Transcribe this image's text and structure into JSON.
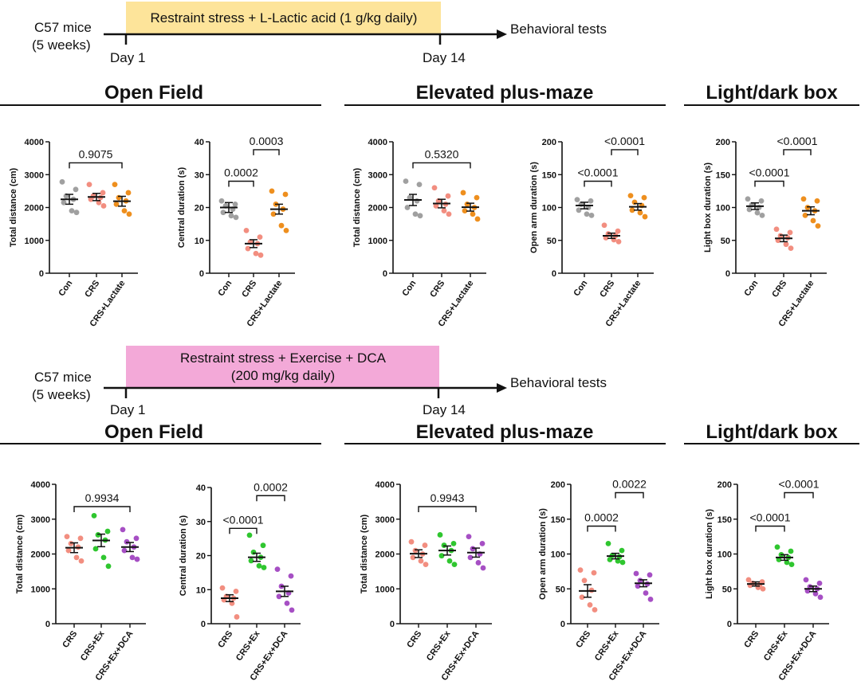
{
  "colors": {
    "Con": "#a0a0a0",
    "CRS": "#f28e80",
    "CRS+Lactate": "#ee8f1e",
    "CRS+Ex": "#2fc62f",
    "CRS+Ex+DCA": "#a64fc4",
    "box_top": "#fde49a",
    "box_bottom": "#f3a9d8"
  },
  "timelines": [
    {
      "subject_line1": "C57 mice",
      "subject_line2": "(5 weeks)",
      "box_line1": "Restraint stress + L-Lactic acid (1 g/kg daily)",
      "box_line2": "",
      "start": "Day 1",
      "end": "Day 14",
      "outcome": "Behavioral tests"
    },
    {
      "subject_line1": "C57 mice",
      "subject_line2": "(5 weeks)",
      "box_line1": "Restraint stress + Exercise + DCA",
      "box_line2": "(200 mg/kg daily)",
      "start": "Day 1",
      "end": "Day 14",
      "outcome": "Behavioral tests"
    }
  ],
  "sections": [
    {
      "title": "Open Field"
    },
    {
      "title": "Elevated plus-maze"
    },
    {
      "title": "Light/dark box"
    },
    {
      "title": "Open Field"
    },
    {
      "title": "Elevated plus-maze"
    },
    {
      "title": "Light/dark box"
    }
  ],
  "chart_data": [
    {
      "type": "scatter",
      "ylabel": "Total distance (cm)",
      "ylim": [
        0,
        4000
      ],
      "yticks": [
        0,
        1000,
        2000,
        3000,
        4000
      ],
      "categories": [
        "Con",
        "CRS",
        "CRS+Lactate"
      ],
      "means": [
        2250,
        2320,
        2190
      ],
      "sems": [
        150,
        110,
        150
      ],
      "points": [
        [
          2780,
          2550,
          2350,
          2250,
          2150,
          1900,
          1850
        ],
        [
          2700,
          2450,
          2350,
          2300,
          2250,
          2150,
          2050
        ],
        [
          2700,
          2450,
          2300,
          2200,
          2100,
          1900,
          1800
        ]
      ],
      "comparisons": [
        {
          "from": 0,
          "to": 2,
          "label": "0.9075"
        }
      ]
    },
    {
      "type": "scatter",
      "ylabel": "Central duration (s)",
      "ylim": [
        0,
        40
      ],
      "yticks": [
        0,
        10,
        20,
        30,
        40
      ],
      "categories": [
        "Con",
        "CRS",
        "CRS+Lactate"
      ],
      "means": [
        20,
        9,
        19.5
      ],
      "sems": [
        1.5,
        1.2,
        1.5
      ],
      "points": [
        [
          22,
          21,
          20.5,
          19.5,
          18.5,
          17.5,
          17
        ],
        [
          13,
          11,
          9.5,
          9,
          7.5,
          6,
          5.5
        ],
        [
          25,
          24,
          21,
          19.5,
          18,
          14.5,
          13
        ]
      ],
      "comparisons": [
        {
          "from": 0,
          "to": 1,
          "label": "0.0002"
        },
        {
          "from": 1,
          "to": 2,
          "label": "0.0003"
        }
      ]
    },
    {
      "type": "scatter",
      "ylabel": "Total distance (cm)",
      "ylim": [
        0,
        4000
      ],
      "yticks": [
        0,
        1000,
        2000,
        3000,
        4000
      ],
      "categories": [
        "Con",
        "CRS",
        "CRS+Lactate"
      ],
      "means": [
        2230,
        2120,
        2010
      ],
      "sems": [
        170,
        130,
        120
      ],
      "points": [
        [
          2800,
          2700,
          2300,
          2200,
          2000,
          1800,
          1750
        ],
        [
          2600,
          2350,
          2200,
          2100,
          2050,
          1900,
          1800
        ],
        [
          2450,
          2300,
          2100,
          2000,
          1900,
          1800,
          1650
        ]
      ],
      "comparisons": [
        {
          "from": 0,
          "to": 2,
          "label": "0.5320"
        }
      ]
    },
    {
      "type": "scatter",
      "ylabel": "Open arm duration (s)",
      "ylim": [
        0,
        200
      ],
      "yticks": [
        0,
        50,
        100,
        150,
        200
      ],
      "categories": [
        "Con",
        "CRS",
        "CRS+Lactate"
      ],
      "means": [
        103,
        57,
        101
      ],
      "sems": [
        5,
        4,
        5
      ],
      "points": [
        [
          112,
          110,
          105,
          100,
          96,
          90,
          88
        ],
        [
          73,
          64,
          60,
          57,
          54,
          51,
          48
        ],
        [
          118,
          115,
          108,
          103,
          96,
          92,
          86
        ]
      ],
      "comparisons": [
        {
          "from": 0,
          "to": 1,
          "label": "<0.0001"
        },
        {
          "from": 1,
          "to": 2,
          "label": "<0.0001"
        }
      ]
    },
    {
      "type": "scatter",
      "ylabel": "Light box duration (s)",
      "ylim": [
        0,
        200
      ],
      "yticks": [
        0,
        50,
        100,
        150,
        200
      ],
      "categories": [
        "Con",
        "CRS",
        "CRS+Lactate"
      ],
      "means": [
        102,
        53,
        95
      ],
      "sems": [
        5,
        5,
        6
      ],
      "points": [
        [
          113,
          110,
          104,
          100,
          97,
          92,
          88
        ],
        [
          67,
          62,
          57,
          54,
          50,
          44,
          38
        ],
        [
          113,
          110,
          100,
          95,
          88,
          80,
          72
        ]
      ],
      "comparisons": [
        {
          "from": 0,
          "to": 1,
          "label": "<0.0001"
        },
        {
          "from": 1,
          "to": 2,
          "label": "<0.0001"
        }
      ]
    },
    {
      "type": "scatter",
      "ylabel": "Total distance (cm)",
      "ylim": [
        0,
        4000
      ],
      "yticks": [
        0,
        1000,
        2000,
        3000,
        4000
      ],
      "categories": [
        "CRS",
        "CRS+Ex",
        "CRS+Ex+DCA"
      ],
      "means": [
        2180,
        2390,
        2200
      ],
      "sems": [
        140,
        180,
        130
      ],
      "points": [
        [
          2500,
          2450,
          2300,
          2200,
          2100,
          1900,
          1800
        ],
        [
          3100,
          2650,
          2550,
          2400,
          2150,
          1900,
          1650
        ],
        [
          2700,
          2450,
          2350,
          2200,
          2100,
          1900,
          1850
        ]
      ],
      "comparisons": [
        {
          "from": 0,
          "to": 2,
          "label": "0.9934"
        }
      ]
    },
    {
      "type": "scatter",
      "ylabel": "Central duration (s)",
      "ylim": [
        0,
        40
      ],
      "yticks": [
        0,
        10,
        20,
        30,
        40
      ],
      "categories": [
        "CRS",
        "CRS+Ex",
        "CRS+Ex+DCA"
      ],
      "means": [
        7.5,
        19.5,
        9.5
      ],
      "sems": [
        1,
        1.2,
        1.5
      ],
      "points": [
        [
          10.5,
          9.5,
          8,
          7.5,
          7,
          6,
          2
        ],
        [
          26,
          23,
          21,
          19.5,
          18.5,
          17,
          16.5
        ],
        [
          16,
          14,
          11,
          9,
          8,
          6,
          4
        ]
      ],
      "comparisons": [
        {
          "from": 0,
          "to": 1,
          "label": "<0.0001"
        },
        {
          "from": 1,
          "to": 2,
          "label": "0.0002"
        }
      ]
    },
    {
      "type": "scatter",
      "ylabel": "Total distance (cm)",
      "ylim": [
        0,
        4000
      ],
      "yticks": [
        0,
        1000,
        2000,
        3000,
        4000
      ],
      "categories": [
        "CRS",
        "CRS+Ex",
        "CRS+Ex+DCA"
      ],
      "means": [
        2010,
        2100,
        2040
      ],
      "sems": [
        110,
        130,
        130
      ],
      "points": [
        [
          2350,
          2250,
          2100,
          2000,
          1900,
          1800,
          1700
        ],
        [
          2550,
          2300,
          2250,
          2100,
          1950,
          1800,
          1700
        ],
        [
          2500,
          2300,
          2150,
          2000,
          1900,
          1750,
          1600
        ]
      ],
      "comparisons": [
        {
          "from": 0,
          "to": 2,
          "label": "0.9943"
        }
      ]
    },
    {
      "type": "scatter",
      "ylabel": "Open arm duration (s)",
      "ylim": [
        0,
        200
      ],
      "yticks": [
        0,
        50,
        100,
        150,
        200
      ],
      "categories": [
        "CRS",
        "CRS+Ex",
        "CRS+Ex+DCA"
      ],
      "means": [
        47,
        97,
        58
      ],
      "sems": [
        9,
        4,
        5
      ],
      "points": [
        [
          77,
          73,
          62,
          48,
          38,
          27,
          20
        ],
        [
          115,
          105,
          98,
          96,
          92,
          90,
          88
        ],
        [
          72,
          70,
          62,
          57,
          54,
          44,
          35
        ]
      ],
      "comparisons": [
        {
          "from": 0,
          "to": 1,
          "label": "0.0002"
        },
        {
          "from": 1,
          "to": 2,
          "label": "0.0022"
        }
      ]
    },
    {
      "type": "scatter",
      "ylabel": "Light box duration (s)",
      "ylim": [
        0,
        200
      ],
      "yticks": [
        0,
        50,
        100,
        150,
        200
      ],
      "categories": [
        "CRS",
        "CRS+Ex",
        "CRS+Ex+DCA"
      ],
      "means": [
        57,
        95,
        50
      ],
      "sems": [
        3,
        4,
        4
      ],
      "points": [
        [
          63,
          60,
          58,
          56,
          55,
          52,
          50
        ],
        [
          110,
          104,
          99,
          95,
          92,
          88,
          85
        ],
        [
          63,
          58,
          53,
          50,
          47,
          43,
          38
        ]
      ],
      "comparisons": [
        {
          "from": 0,
          "to": 1,
          "label": "<0.0001"
        },
        {
          "from": 1,
          "to": 2,
          "label": "<0.0001"
        }
      ]
    }
  ]
}
